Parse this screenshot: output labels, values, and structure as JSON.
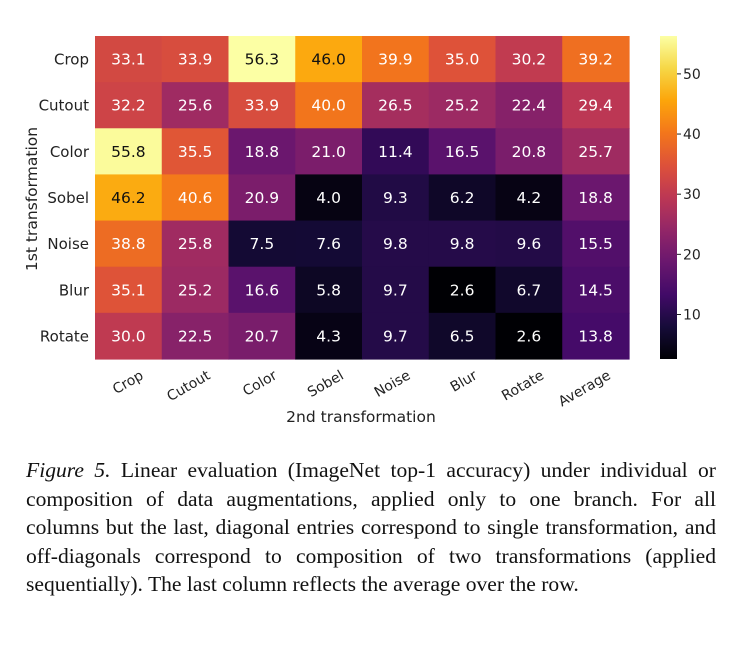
{
  "chart_data": {
    "type": "heatmap",
    "title": "",
    "xlabel": "2nd transformation",
    "ylabel": "1st transformation",
    "x_categories": [
      "Crop",
      "Cutout",
      "Color",
      "Sobel",
      "Noise",
      "Blur",
      "Rotate",
      "Average"
    ],
    "y_categories": [
      "Crop",
      "Cutout",
      "Color",
      "Sobel",
      "Noise",
      "Blur",
      "Rotate"
    ],
    "values": [
      [
        33.1,
        33.9,
        56.3,
        46.0,
        39.9,
        35.0,
        30.2,
        39.2
      ],
      [
        32.2,
        25.6,
        33.9,
        40.0,
        26.5,
        25.2,
        22.4,
        29.4
      ],
      [
        55.8,
        35.5,
        18.8,
        21.0,
        11.4,
        16.5,
        20.8,
        25.7
      ],
      [
        46.2,
        40.6,
        20.9,
        4.0,
        9.3,
        6.2,
        4.2,
        18.8
      ],
      [
        38.8,
        25.8,
        7.5,
        7.6,
        9.8,
        9.8,
        9.6,
        15.5
      ],
      [
        35.1,
        25.2,
        16.6,
        5.8,
        9.7,
        2.6,
        6.7,
        14.5
      ],
      [
        30.0,
        22.5,
        20.7,
        4.3,
        9.7,
        6.5,
        2.6,
        13.8
      ]
    ],
    "colormap": "inferno",
    "colorbar": {
      "range": [
        2.6,
        56.3
      ],
      "ticks": [
        "10",
        "20",
        "30",
        "40",
        "50"
      ]
    }
  },
  "caption": {
    "label": "Figure 5.",
    "text": " Linear evaluation (ImageNet top-1 accuracy) under individual or composition of data augmentations, applied only to one branch. For all columns but the last, diagonal entries correspond to single transformation, and off-diagonals correspond to composition of two transformations (applied sequentially). The last column reflects the average over the row."
  }
}
